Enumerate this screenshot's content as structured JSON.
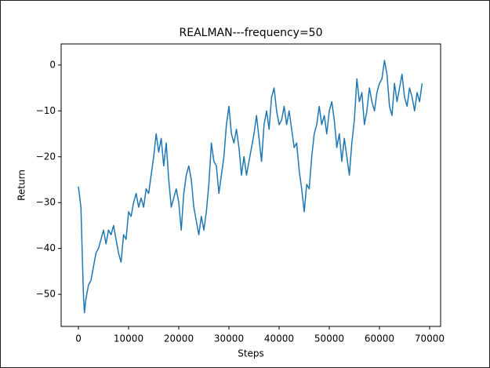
{
  "chart_data": {
    "type": "line",
    "title": "REALMAN---frequency=50",
    "xlabel": "Steps",
    "ylabel": "Return",
    "x": [
      0,
      500,
      1000,
      1200,
      1500,
      2000,
      2500,
      3000,
      3500,
      4000,
      4500,
      5000,
      5500,
      6000,
      6500,
      7000,
      7500,
      8000,
      8500,
      9000,
      9500,
      10000,
      10500,
      11000,
      11500,
      12000,
      12500,
      13000,
      13500,
      14000,
      14500,
      15000,
      15500,
      16000,
      16500,
      17000,
      17500,
      18000,
      18500,
      19000,
      19500,
      20000,
      20500,
      21000,
      21500,
      22000,
      22500,
      23000,
      23500,
      24000,
      24500,
      25000,
      25500,
      26000,
      26500,
      27000,
      27500,
      28000,
      28500,
      29000,
      29500,
      30000,
      30500,
      31000,
      31500,
      32000,
      32500,
      33000,
      33500,
      34000,
      34500,
      35000,
      35500,
      36000,
      36500,
      37000,
      37500,
      38000,
      38500,
      39000,
      39500,
      40000,
      40500,
      41000,
      41500,
      42000,
      42500,
      43000,
      43500,
      44000,
      44500,
      45000,
      45500,
      46000,
      46500,
      47000,
      47500,
      48000,
      48500,
      49000,
      49500,
      50000,
      50500,
      51000,
      51500,
      52000,
      52500,
      53000,
      53500,
      54000,
      54500,
      55000,
      55500,
      56000,
      56500,
      57000,
      57500,
      58000,
      58500,
      59000,
      59500,
      60000,
      60500,
      61000,
      61500,
      62000,
      62500,
      63000,
      63500,
      64000,
      64500,
      65000,
      65500,
      66000,
      66500,
      67000,
      67500,
      68000,
      68500
    ],
    "series": [
      {
        "name": "Return",
        "color": "#1f77b4",
        "values": [
          -26.5,
          -31,
          -50,
          -54,
          -51,
          -48,
          -47,
          -44,
          -41,
          -40,
          -38,
          -36,
          -39,
          -36,
          -37,
          -35,
          -38,
          -41,
          -43,
          -37,
          -38,
          -32,
          -33,
          -30,
          -28,
          -31,
          -29,
          -31,
          -27,
          -28,
          -24,
          -20,
          -15,
          -19,
          -16,
          -22,
          -17,
          -25,
          -31,
          -29,
          -27,
          -30,
          -36,
          -28,
          -24,
          -22,
          -25,
          -31,
          -34,
          -37,
          -33,
          -36,
          -32,
          -26,
          -17,
          -21,
          -22,
          -28,
          -24,
          -20,
          -13,
          -9,
          -15,
          -17,
          -14,
          -18,
          -24,
          -20,
          -24,
          -21,
          -18,
          -15,
          -11,
          -16,
          -21,
          -13,
          -10,
          -14,
          -7,
          -5,
          -10,
          -13,
          -12,
          -9,
          -13,
          -10,
          -14,
          -18,
          -17,
          -23,
          -27,
          -32,
          -26,
          -27,
          -20,
          -15,
          -13,
          -9,
          -13,
          -11,
          -15,
          -10,
          -8,
          -12,
          -18,
          -15,
          -21,
          -16,
          -20,
          -24,
          -17,
          -12,
          -3,
          -8,
          -6,
          -13,
          -10,
          -5,
          -8,
          -10,
          -6,
          -4,
          -3,
          1,
          -2,
          -9,
          -11,
          -4,
          -8,
          -5,
          -2,
          -7,
          -9,
          -5,
          -7,
          -10,
          -6,
          -8,
          -4
        ]
      }
    ],
    "xlim": [
      -3440,
      72190
    ],
    "ylim": [
      -57.0,
      4.6
    ],
    "xticks": [
      0,
      10000,
      20000,
      30000,
      40000,
      50000,
      60000,
      70000
    ],
    "yticks": [
      {
        "value": -50,
        "label": "−50"
      },
      {
        "value": -40,
        "label": "−40"
      },
      {
        "value": -30,
        "label": "−30"
      },
      {
        "value": -20,
        "label": "−20"
      },
      {
        "value": -10,
        "label": "−10"
      },
      0
    ]
  }
}
